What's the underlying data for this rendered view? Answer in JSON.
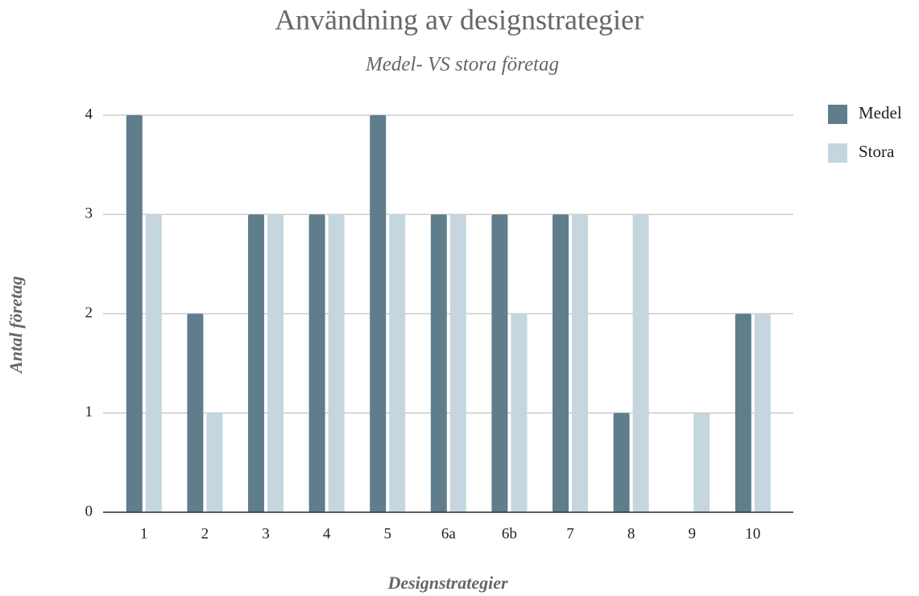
{
  "chart_data": {
    "type": "bar",
    "title": "Användning av designstrategier",
    "subtitle": "Medel- VS stora företag",
    "x_label": "Designstrategier",
    "y_label": "Antal företag",
    "categories": [
      "1",
      "2",
      "3",
      "4",
      "5",
      "6a",
      "6b",
      "7",
      "8",
      "9",
      "10"
    ],
    "series": [
      {
        "name": "Medel",
        "color": "#607d8b",
        "values": [
          4,
          2,
          3,
          3,
          4,
          3,
          3,
          3,
          1,
          0,
          2
        ]
      },
      {
        "name": "Stora",
        "color": "#c5d6de",
        "values": [
          3,
          1,
          3,
          3,
          3,
          3,
          2,
          3,
          3,
          1,
          2
        ]
      }
    ],
    "ylim": [
      0,
      4
    ],
    "yticks": [
      0,
      1,
      2,
      3,
      4
    ],
    "grid": true,
    "legend": "right"
  }
}
